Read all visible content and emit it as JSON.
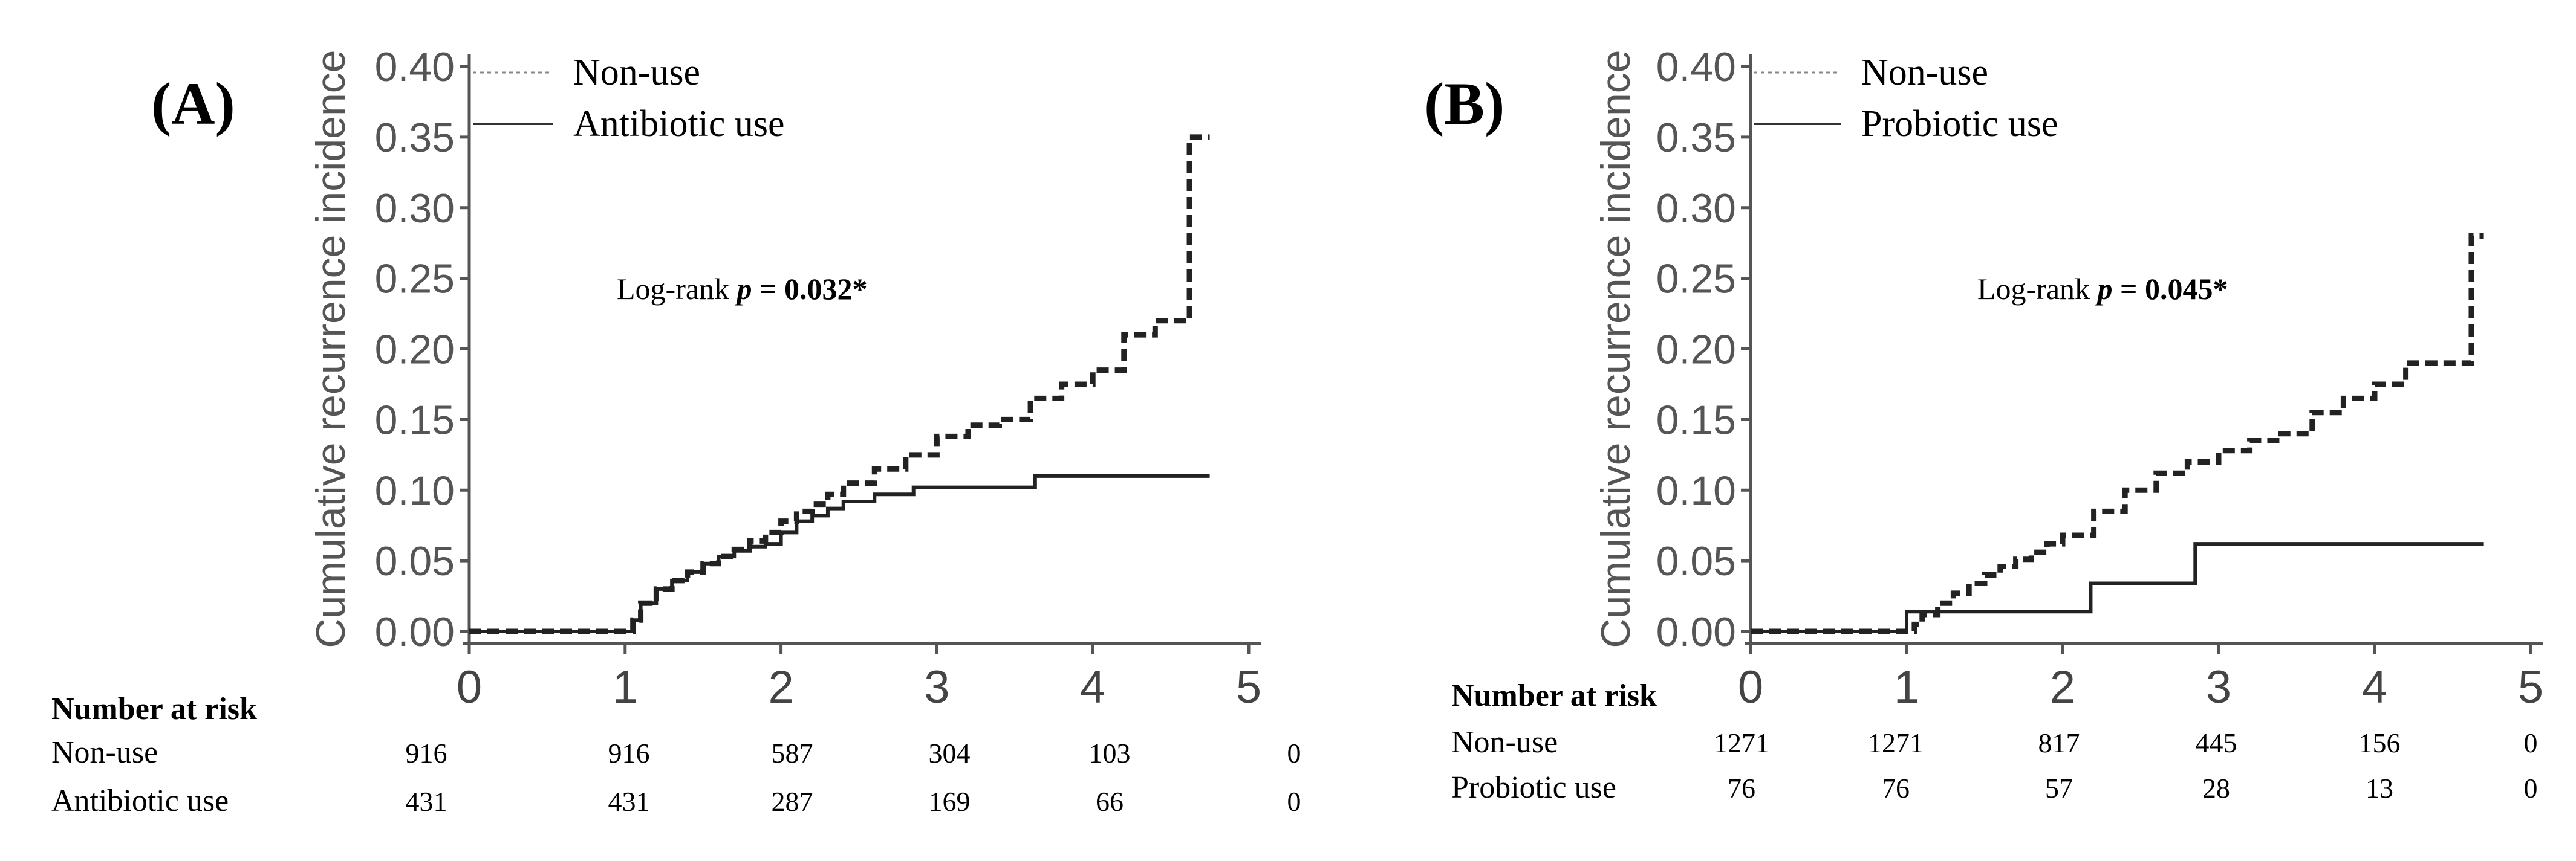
{
  "chart_data": [
    {
      "type": "line",
      "panel_label": "(A)",
      "ylabel": "Cumulative recurrence incidence",
      "xlabel": "",
      "xlim": [
        0,
        5
      ],
      "ylim": [
        0,
        0.4
      ],
      "xticks": [
        "0",
        "1",
        "2",
        "3",
        "4",
        "5"
      ],
      "yticks": [
        "0.00",
        "0.05",
        "0.10",
        "0.15",
        "0.20",
        "0.25",
        "0.30",
        "0.35",
        "0.40"
      ],
      "legend": [
        "Non-use",
        "Antibiotic use"
      ],
      "annotation": {
        "prefix": "Log-rank ",
        "p": "p",
        "eq": " = ",
        "value": "0.032*"
      },
      "series": [
        {
          "name": "Non-use",
          "style": "dashed",
          "x": [
            0,
            1.0,
            1.05,
            1.1,
            1.2,
            1.3,
            1.4,
            1.5,
            1.6,
            1.7,
            1.8,
            1.9,
            2.0,
            2.1,
            2.2,
            2.3,
            2.4,
            2.6,
            2.8,
            3.0,
            3.2,
            3.4,
            3.6,
            3.8,
            4.0,
            4.2,
            4.4,
            4.62,
            4.75
          ],
          "y": [
            0,
            0.0,
            0.008,
            0.02,
            0.03,
            0.036,
            0.042,
            0.048,
            0.053,
            0.058,
            0.064,
            0.07,
            0.078,
            0.085,
            0.09,
            0.097,
            0.105,
            0.115,
            0.125,
            0.138,
            0.146,
            0.15,
            0.165,
            0.175,
            0.185,
            0.21,
            0.22,
            0.35,
            0.35
          ]
        },
        {
          "name": "Antibiotic use",
          "style": "solid",
          "x": [
            0,
            1.0,
            1.05,
            1.1,
            1.2,
            1.3,
            1.4,
            1.5,
            1.6,
            1.7,
            1.8,
            1.9,
            2.0,
            2.1,
            2.2,
            2.3,
            2.4,
            2.6,
            2.85,
            3.63,
            4.75
          ],
          "y": [
            0,
            0.0,
            0.008,
            0.02,
            0.03,
            0.036,
            0.042,
            0.048,
            0.053,
            0.057,
            0.06,
            0.062,
            0.07,
            0.078,
            0.082,
            0.087,
            0.092,
            0.097,
            0.102,
            0.11,
            0.11
          ]
        }
      ],
      "risk_table": {
        "title": "Number at risk",
        "rows": [
          {
            "label": "Non-use",
            "values": [
              "916",
              "916",
              "587",
              "304",
              "103",
              "0"
            ]
          },
          {
            "label": "Antibiotic use",
            "values": [
              "431",
              "431",
              "287",
              "169",
              "66",
              "0"
            ]
          }
        ]
      }
    },
    {
      "type": "line",
      "panel_label": "(B)",
      "ylabel": "Cumulative recurrence incidence",
      "xlabel": "",
      "xlim": [
        0,
        5
      ],
      "ylim": [
        0,
        0.4
      ],
      "xticks": [
        "0",
        "1",
        "2",
        "3",
        "4",
        "5"
      ],
      "yticks": [
        "0.00",
        "0.05",
        "0.10",
        "0.15",
        "0.20",
        "0.25",
        "0.30",
        "0.35",
        "0.40"
      ],
      "legend": [
        "Non-use",
        "Probiotic use"
      ],
      "annotation": {
        "prefix": "Log-rank ",
        "p": "p",
        "eq": " = ",
        "value": "0.045*"
      },
      "series": [
        {
          "name": "Non-use",
          "style": "dashed",
          "x": [
            0,
            1.0,
            1.05,
            1.1,
            1.2,
            1.3,
            1.4,
            1.5,
            1.6,
            1.7,
            1.8,
            1.9,
            2.0,
            2.2,
            2.4,
            2.6,
            2.8,
            3.0,
            3.2,
            3.4,
            3.6,
            3.8,
            4.0,
            4.2,
            4.4,
            4.62,
            4.7
          ],
          "y": [
            0,
            0.0,
            0.005,
            0.012,
            0.02,
            0.027,
            0.034,
            0.04,
            0.046,
            0.051,
            0.056,
            0.062,
            0.068,
            0.085,
            0.1,
            0.112,
            0.12,
            0.128,
            0.135,
            0.14,
            0.155,
            0.165,
            0.175,
            0.19,
            0.19,
            0.28,
            0.28
          ]
        },
        {
          "name": "Probiotic use",
          "style": "solid",
          "x": [
            0,
            1.0,
            2.18,
            2.85,
            4.7
          ],
          "y": [
            0,
            0.014,
            0.034,
            0.062,
            0.062
          ]
        }
      ],
      "risk_table": {
        "title": "Number at risk",
        "rows": [
          {
            "label": "Non-use",
            "values": [
              "1271",
              "1271",
              "817",
              "445",
              "156",
              "0"
            ]
          },
          {
            "label": "Probiotic use",
            "values": [
              "76",
              "76",
              "57",
              "28",
              "13",
              "0"
            ]
          }
        ]
      }
    }
  ]
}
